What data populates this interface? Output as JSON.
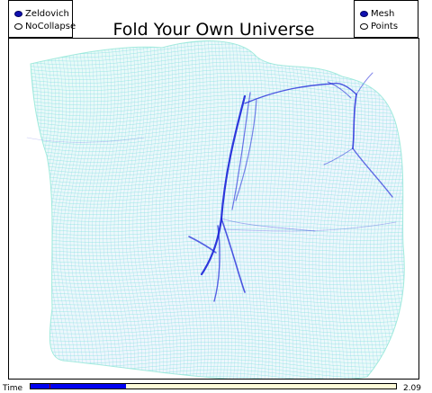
{
  "title": "Fold Your Own Universe",
  "mode_options": [
    {
      "label": "Zeldovich",
      "selected": true
    },
    {
      "label": "NoCollapse",
      "selected": false
    }
  ],
  "view_options": [
    {
      "label": "Mesh",
      "selected": true
    },
    {
      "label": "Points",
      "selected": false
    }
  ],
  "time_slider": {
    "label": "Time",
    "value": "2.09",
    "fill_fraction": 0.26,
    "max": 8
  },
  "colors": {
    "mesh_light": "#7fe8d8",
    "mesh_dense": "#1a22d8",
    "slider_fill": "#0000f0",
    "slider_track": "#fdfbd9",
    "radio_selected": "#1010b0"
  }
}
